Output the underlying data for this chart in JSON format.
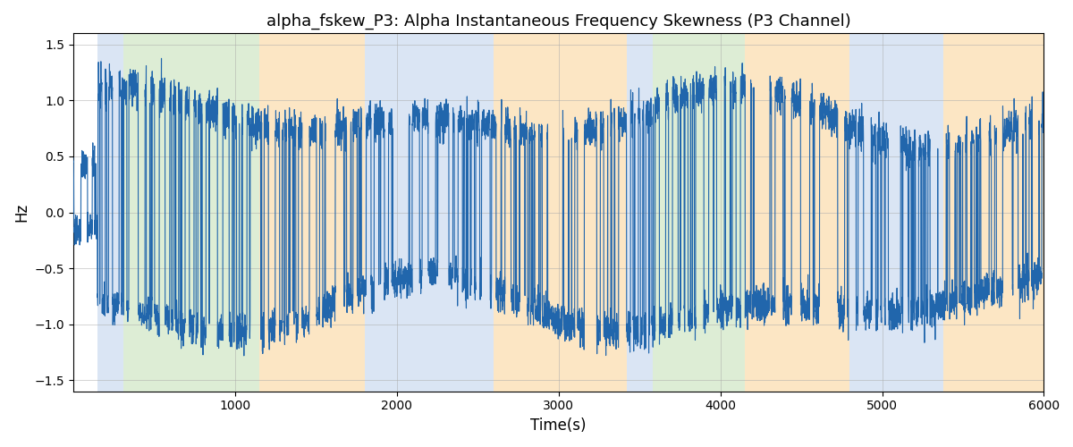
{
  "title": "alpha_fskew_P3: Alpha Instantaneous Frequency Skewness (P3 Channel)",
  "xlabel": "Time(s)",
  "ylabel": "Hz",
  "xlim": [
    0,
    6000
  ],
  "ylim": [
    -1.6,
    1.6
  ],
  "yticks": [
    -1.5,
    -1.0,
    -0.5,
    0.0,
    0.5,
    1.0,
    1.5
  ],
  "xticks": [
    1000,
    2000,
    3000,
    4000,
    5000,
    6000
  ],
  "line_color": "#2166ac",
  "line_width": 0.8,
  "bg_color": "#ffffff",
  "grid_color": "#aaaaaa",
  "bands": [
    {
      "xmin": 150,
      "xmax": 310,
      "color": "#aec6e8",
      "alpha": 0.45
    },
    {
      "xmin": 310,
      "xmax": 1150,
      "color": "#b5d9a3",
      "alpha": 0.45
    },
    {
      "xmin": 1150,
      "xmax": 1800,
      "color": "#f9c97c",
      "alpha": 0.45
    },
    {
      "xmin": 1800,
      "xmax": 2600,
      "color": "#aec6e8",
      "alpha": 0.45
    },
    {
      "xmin": 2600,
      "xmax": 3420,
      "color": "#f9c97c",
      "alpha": 0.45
    },
    {
      "xmin": 3420,
      "xmax": 3580,
      "color": "#aec6e8",
      "alpha": 0.45
    },
    {
      "xmin": 3580,
      "xmax": 4150,
      "color": "#b5d9a3",
      "alpha": 0.45
    },
    {
      "xmin": 4150,
      "xmax": 4800,
      "color": "#f9c97c",
      "alpha": 0.45
    },
    {
      "xmin": 4800,
      "xmax": 5380,
      "color": "#aec6e8",
      "alpha": 0.45
    },
    {
      "xmin": 5380,
      "xmax": 6000,
      "color": "#f9c97c",
      "alpha": 0.45
    }
  ],
  "seed": 42,
  "n_points": 6000
}
